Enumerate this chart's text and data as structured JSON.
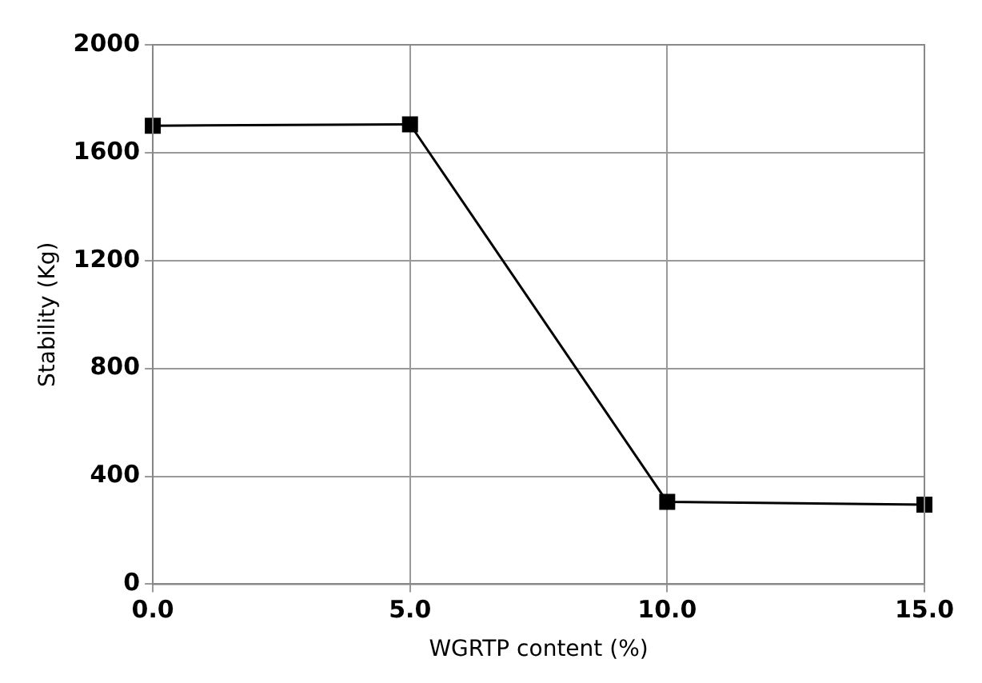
{
  "chart_data": {
    "type": "line",
    "xlabel": "WGRTP content (%)",
    "ylabel": "Stability (Kg)",
    "x": [
      0,
      5,
      10,
      15
    ],
    "series": [
      {
        "color": "#000000",
        "values": [
          1700,
          1705,
          305,
          295
        ]
      }
    ],
    "xlim": [
      0,
      15
    ],
    "xticks": [
      {
        "value": 0,
        "label": "0.0"
      },
      {
        "value": 5,
        "label": "5.0"
      },
      {
        "value": 10,
        "label": "10.0"
      },
      {
        "value": 15,
        "label": "15.0"
      }
    ],
    "ylim": [
      0,
      2000
    ],
    "yticks": [
      0,
      400,
      800,
      1200,
      1600,
      2000
    ],
    "grid": true,
    "marker": "square",
    "line_style": "solid",
    "legend": false
  }
}
